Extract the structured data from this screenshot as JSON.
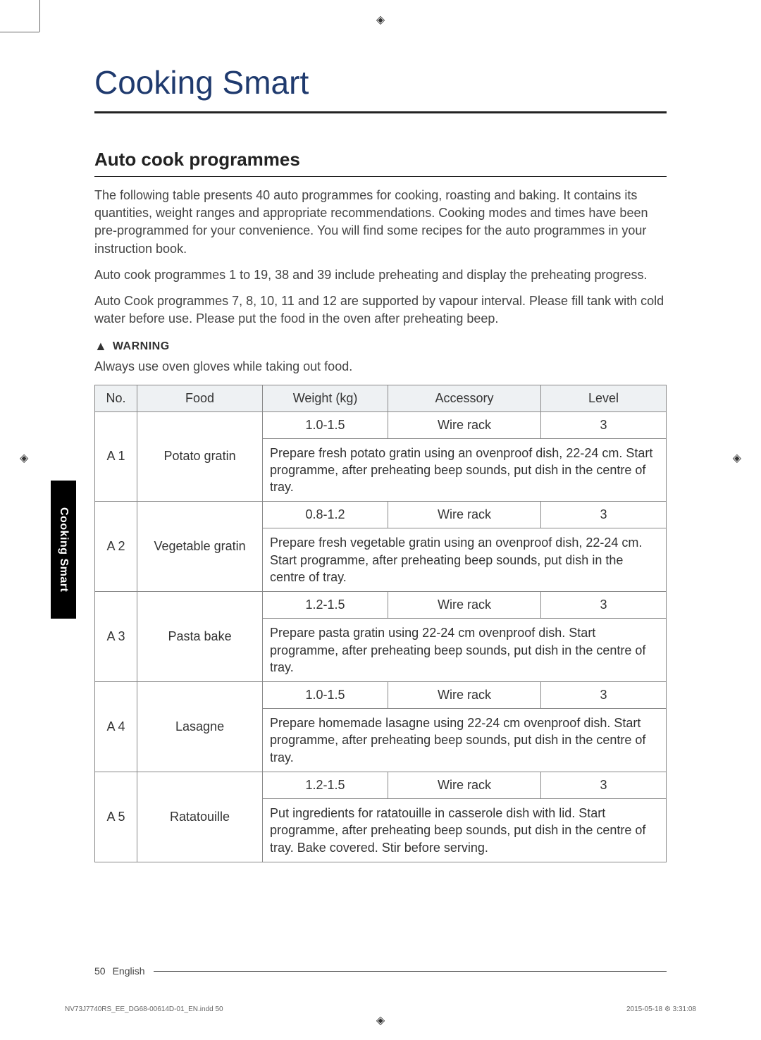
{
  "cropGlyph": "◈",
  "title": "Cooking Smart",
  "subtitle": "Auto cook programmes",
  "paragraphs": [
    "The following table presents 40 auto programmes for cooking, roasting and baking. It contains its quantities, weight ranges and appropriate recommendations. Cooking modes and times have been pre-programmed for your convenience. You will find some recipes for the auto programmes in your instruction book.",
    "Auto cook programmes 1 to 19, 38 and 39 include preheating and display the preheating progress.",
    "Auto Cook programmes 7, 8, 10, 11 and 12 are supported by vapour interval. Please fill tank with cold water before use. Please put the food in the oven after preheating beep."
  ],
  "warning": {
    "icon": "▲",
    "label": "WARNING",
    "text": "Always use oven gloves while taking out food."
  },
  "table": {
    "headers": [
      "No.",
      "Food",
      "Weight (kg)",
      "Accessory",
      "Level"
    ],
    "rows": [
      {
        "no": "A 1",
        "food": "Potato gratin",
        "weight": "1.0-1.5",
        "accessory": "Wire rack",
        "level": "3",
        "instructions": "Prepare fresh potato gratin using an ovenproof dish, 22-24 cm. Start programme, after preheating beep sounds, put dish in the centre of tray."
      },
      {
        "no": "A 2",
        "food": "Vegetable gratin",
        "weight": "0.8-1.2",
        "accessory": "Wire rack",
        "level": "3",
        "instructions": "Prepare fresh vegetable gratin using an ovenproof dish, 22-24 cm. Start programme, after preheating beep sounds, put dish in the centre of tray."
      },
      {
        "no": "A 3",
        "food": "Pasta bake",
        "weight": "1.2-1.5",
        "accessory": "Wire rack",
        "level": "3",
        "instructions": "Prepare pasta gratin using 22-24 cm ovenproof dish. Start programme, after preheating beep sounds, put dish in the centre of tray."
      },
      {
        "no": "A 4",
        "food": "Lasagne",
        "weight": "1.0-1.5",
        "accessory": "Wire rack",
        "level": "3",
        "instructions": "Prepare homemade lasagne using 22-24 cm ovenproof dish. Start programme, after preheating beep sounds, put dish in the centre of tray."
      },
      {
        "no": "A 5",
        "food": "Ratatouille",
        "weight": "1.2-1.5",
        "accessory": "Wire rack",
        "level": "3",
        "instructions": "Put ingredients for ratatouille in casserole dish with lid. Start programme, after preheating beep sounds, put dish in the centre of tray. Bake covered. Stir before serving."
      }
    ]
  },
  "sideTab": "Cooking Smart",
  "footer": {
    "page": "50",
    "language": "English"
  },
  "imprint": {
    "left": "NV73J7740RS_EE_DG68-00614D-01_EN.indd   50",
    "right": "2015-05-18   ⚙ 3:31:08"
  }
}
